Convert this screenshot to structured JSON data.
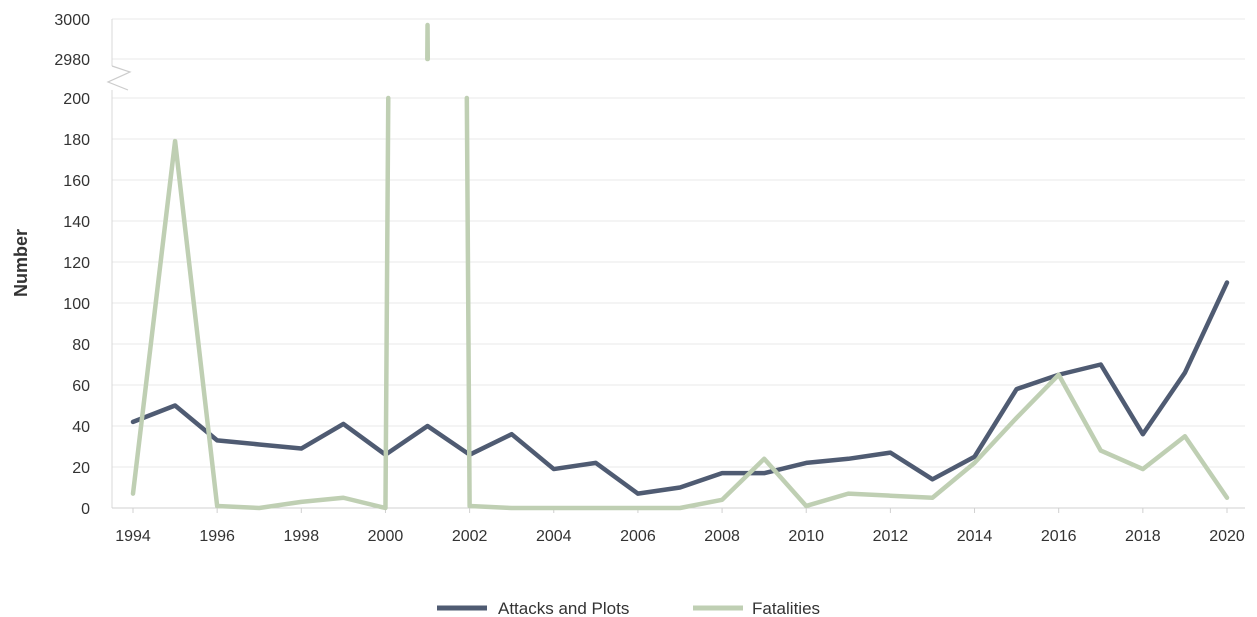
{
  "chart_data": {
    "type": "line",
    "xlabel": "",
    "ylabel": "Number",
    "x": [
      1994,
      1995,
      1996,
      1997,
      1998,
      1999,
      2000,
      2001,
      2002,
      2003,
      2004,
      2005,
      2006,
      2007,
      2008,
      2009,
      2010,
      2011,
      2012,
      2013,
      2014,
      2015,
      2016,
      2017,
      2018,
      2019,
      2020
    ],
    "x_ticks": [
      "1994",
      "1996",
      "1998",
      "2000",
      "2002",
      "2004",
      "2006",
      "2008",
      "2010",
      "2012",
      "2014",
      "2016",
      "2018",
      "2020"
    ],
    "y_ticks_lower": [
      "0",
      "20",
      "40",
      "60",
      "80",
      "100",
      "120",
      "140",
      "160",
      "180",
      "200"
    ],
    "y_ticks_upper": [
      "2980",
      "3000"
    ],
    "axis_break": true,
    "ylim_lower": [
      0,
      200
    ],
    "ylim_upper": [
      2980,
      3000
    ],
    "grid": true,
    "legend_position": "bottom-center",
    "series": [
      {
        "name": "Attacks and Plots",
        "color": "#4f5b72",
        "values": [
          42,
          50,
          33,
          31,
          29,
          41,
          26,
          40,
          26,
          36,
          19,
          22,
          7,
          10,
          17,
          17,
          22,
          24,
          27,
          14,
          25,
          58,
          65,
          70,
          36,
          66,
          110
        ]
      },
      {
        "name": "Fatalities",
        "color": "#bfcfb3",
        "values": [
          7,
          179,
          1,
          0,
          3,
          5,
          0,
          2997,
          1,
          0,
          0,
          0,
          0,
          0,
          4,
          24,
          1,
          7,
          6,
          5,
          22,
          44,
          65,
          28,
          19,
          35,
          5
        ]
      }
    ]
  }
}
